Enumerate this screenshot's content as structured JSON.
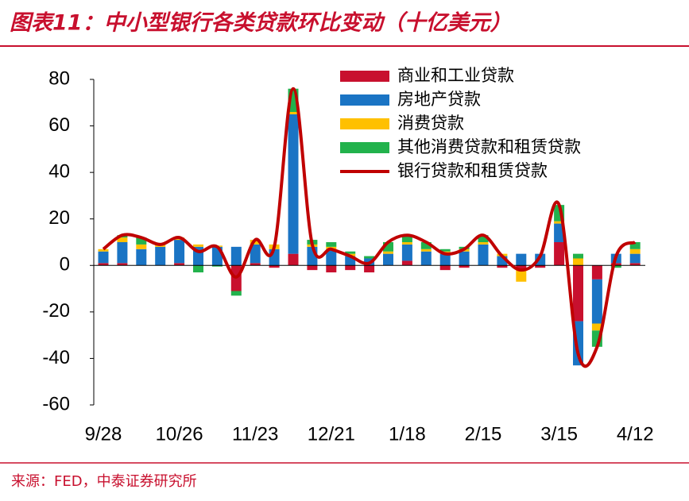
{
  "chart_data": {
    "type": "bar",
    "title": "图表11：中小型银行各类贷款环比变动（十亿美元）",
    "source": "来源：FED，中泰证券研究所",
    "categories": [
      "9/28",
      null,
      null,
      null,
      "10/26",
      null,
      null,
      null,
      "11/23",
      null,
      null,
      null,
      "12/21",
      null,
      null,
      null,
      "1/18",
      null,
      null,
      null,
      "2/15",
      null,
      null,
      null,
      "3/15",
      null,
      null,
      null,
      "4/12"
    ],
    "series": [
      {
        "name": "商业和工业贷款",
        "type": "bar",
        "color": "#c8102e",
        "values": [
          1,
          1,
          0,
          0,
          1,
          0,
          0,
          -11,
          1,
          -1,
          5,
          -2,
          -3,
          -2,
          -3,
          0,
          2,
          0,
          -2,
          -1,
          0,
          -1,
          -2,
          -1,
          10,
          -24,
          -6,
          1,
          1
        ]
      },
      {
        "name": "房地产贷款",
        "type": "bar",
        "color": "#1a74c4",
        "values": [
          5,
          9,
          7,
          8,
          10,
          8,
          8,
          8,
          8,
          7,
          60,
          8,
          7,
          4,
          3,
          5,
          7,
          6,
          5,
          6,
          9,
          4,
          5,
          5,
          8,
          -19,
          -19,
          4,
          4
        ]
      },
      {
        "name": "消费贷款",
        "type": "bar",
        "color": "#ffc000",
        "values": [
          1,
          2,
          2,
          1,
          1,
          1,
          0.5,
          0,
          2,
          2,
          1,
          1,
          1,
          1,
          0,
          1,
          1,
          1,
          1,
          1,
          1,
          1,
          -5,
          0,
          1,
          3,
          -3,
          0,
          2
        ]
      },
      {
        "name": "其他消费贷款和租赁贷款",
        "type": "bar",
        "color": "#22b24c",
        "values": [
          0,
          1,
          3,
          0,
          0,
          -3,
          -0.5,
          -2,
          0,
          0,
          10,
          2,
          2,
          1,
          1,
          4,
          3,
          3,
          1,
          1,
          3,
          0,
          0,
          0,
          7,
          2,
          -7,
          -1,
          3
        ]
      },
      {
        "name": "银行贷款和租赁贷款",
        "type": "line",
        "color": "#c00000",
        "values": [
          7,
          13,
          12,
          9,
          12,
          6,
          8,
          -5,
          11,
          8,
          76,
          9,
          7,
          4,
          1,
          10,
          13,
          10,
          5,
          7,
          13,
          4,
          -2,
          4,
          26,
          -38,
          -35,
          4,
          10
        ]
      }
    ],
    "ylim": [
      -60,
      80
    ],
    "yticks": [
      -60,
      -40,
      -20,
      0,
      20,
      40,
      60,
      80
    ]
  }
}
